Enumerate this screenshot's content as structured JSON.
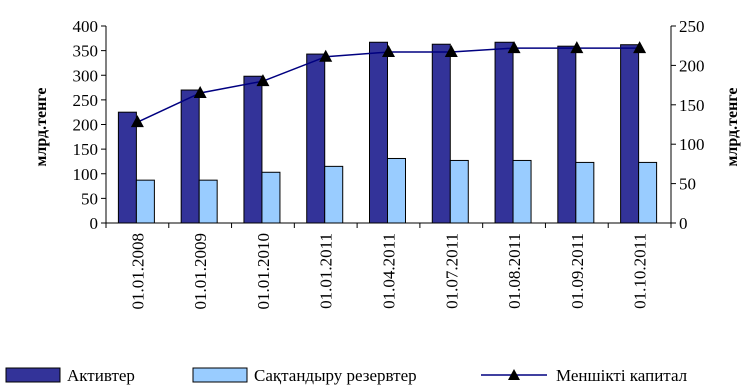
{
  "chart_data": {
    "type": "bar",
    "categories": [
      "01.01.2008",
      "01.01.2009",
      "01.01.2010",
      "01.01.2011",
      "01.04.2011",
      "01.07.2011",
      "01.08.2011",
      "01.09.2011",
      "01.10.2011"
    ],
    "series": [
      {
        "name": "Активтер",
        "type": "bar",
        "axis": "left",
        "color": "#333399",
        "values": [
          225,
          270,
          298,
          343,
          367,
          363,
          367,
          359,
          362
        ]
      },
      {
        "name": "Сақтандыру резервтер",
        "type": "bar",
        "axis": "left",
        "color": "#99CCFF",
        "values": [
          87,
          87,
          103,
          115,
          131,
          127,
          127,
          123,
          123
        ]
      },
      {
        "name": "Меншікті капитал",
        "type": "line",
        "axis": "right",
        "color": "#000080",
        "values": [
          128,
          165,
          180,
          211,
          217,
          217,
          222,
          222,
          222
        ]
      }
    ],
    "ylabel": "млрд.тенге",
    "y2label": "млрд.тенге",
    "ylim": [
      0,
      400
    ],
    "y2lim": [
      0,
      250
    ],
    "yticks": [
      0,
      50,
      100,
      150,
      200,
      250,
      300,
      350,
      400
    ],
    "y2ticks": [
      0,
      50,
      100,
      150,
      200,
      250
    ],
    "grid": false,
    "legend": "bottom"
  }
}
